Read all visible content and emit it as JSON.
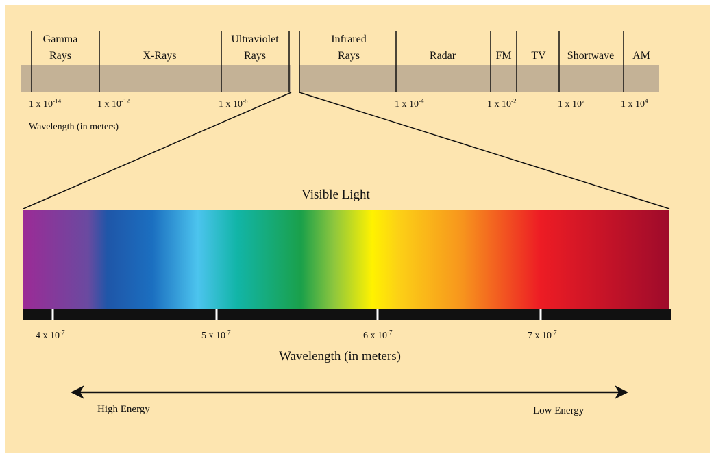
{
  "bands": [
    {
      "lines": [
        "Gamma",
        "Rays"
      ]
    },
    {
      "lines": [
        "X-Rays"
      ]
    },
    {
      "lines": [
        "Ultraviolet",
        "Rays"
      ]
    },
    {
      "lines": [
        "Infrared",
        "Rays"
      ]
    },
    {
      "lines": [
        "Radar"
      ]
    },
    {
      "lines": [
        "FM"
      ]
    },
    {
      "lines": [
        "TV"
      ]
    },
    {
      "lines": [
        "Shortwave"
      ]
    },
    {
      "lines": [
        "AM"
      ]
    }
  ],
  "scale_labels": [
    {
      "base": "1 x 10",
      "exponent": "-14"
    },
    {
      "base": "1 x 10",
      "exponent": "-12"
    },
    {
      "base": "1 x 10",
      "exponent": "-8"
    },
    {
      "base": "1 x 10",
      "exponent": "-4"
    },
    {
      "base": "1 x 10",
      "exponent": "-2"
    },
    {
      "base": "1 x 10",
      "exponent": "2"
    },
    {
      "base": "1 x 10",
      "exponent": "4"
    }
  ],
  "scale_title": "Wavelength (in meters)",
  "visible": {
    "title": "Visible Light",
    "ticks": [
      {
        "base": "4 x 10",
        "exponent": "-7"
      },
      {
        "base": "5 x 10",
        "exponent": "-7"
      },
      {
        "base": "6 x 10",
        "exponent": "-7"
      },
      {
        "base": "7 x 10",
        "exponent": "-7"
      }
    ],
    "axis_title": "Wavelength (in meters)"
  },
  "energy": {
    "left": "High Energy",
    "right": "Low Energy"
  }
}
